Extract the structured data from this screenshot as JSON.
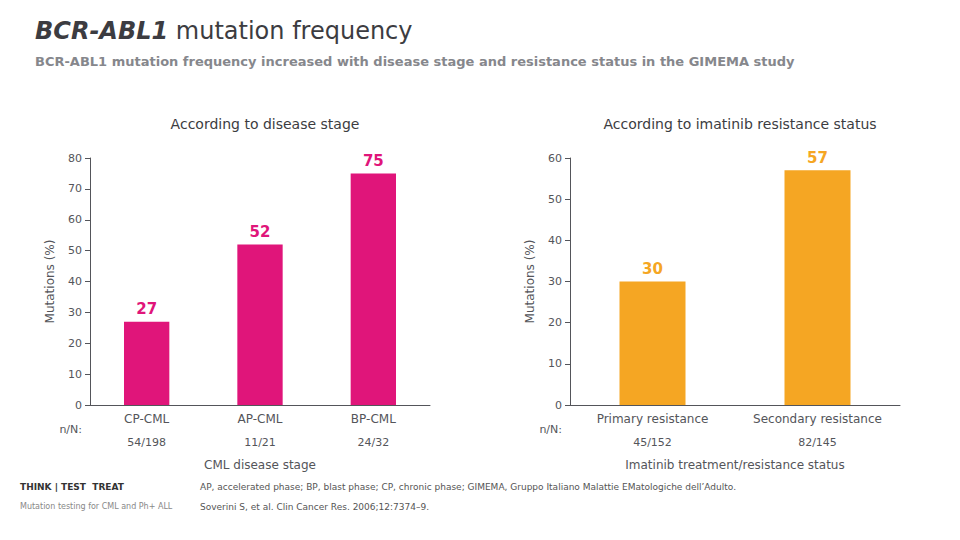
{
  "title": "BCR-ABL1 mutation frequency",
  "subtitle": "BCR-ABL1 mutation frequency increased with disease stage and resistance status in the GIMEMA study",
  "annotations": [
    "AP, accelerated phase; BP, blast phase; CP, chronic phase; GIMEMA, Gruppo Italiano Malattie EMatologiche dell’Adulto.",
    "Soverini S, et al. Clin Cancer Res. 2006;12:7374–9.",
    "THINK | TEST  TREAT",
    "Mutation testing for CML and Ph+ ALL"
  ],
  "chart_data": [
    {
      "type": "bar",
      "title": "According to disease stage",
      "categories": [
        "CP-CML",
        "AP-CML",
        "BP-CML"
      ],
      "values": [
        27,
        52,
        75
      ],
      "color": "#e0157a",
      "ylabel": "Mutations (%)",
      "xlabel": "CML disease stage",
      "ylim": [
        0,
        80
      ],
      "yticks": [
        0,
        10,
        20,
        30,
        40,
        50,
        60,
        70,
        80
      ],
      "data_labels": true,
      "grid": false,
      "n_label": "n/N:",
      "n_values": [
        "54/198",
        "11/21",
        "24/32"
      ]
    },
    {
      "type": "bar",
      "title": "According to imatinib resistance status",
      "categories": [
        "Primary resistance",
        "Secondary resistance"
      ],
      "values": [
        30,
        57
      ],
      "color": "#f5a623",
      "ylabel": "Mutations (%)",
      "xlabel": "Imatinib treatment/resistance status",
      "ylim": [
        0,
        60
      ],
      "yticks": [
        0,
        10,
        20,
        30,
        40,
        50,
        60
      ],
      "data_labels": true,
      "grid": false,
      "n_label": "n/N:",
      "n_values": [
        "45/152",
        "82/145"
      ]
    }
  ]
}
